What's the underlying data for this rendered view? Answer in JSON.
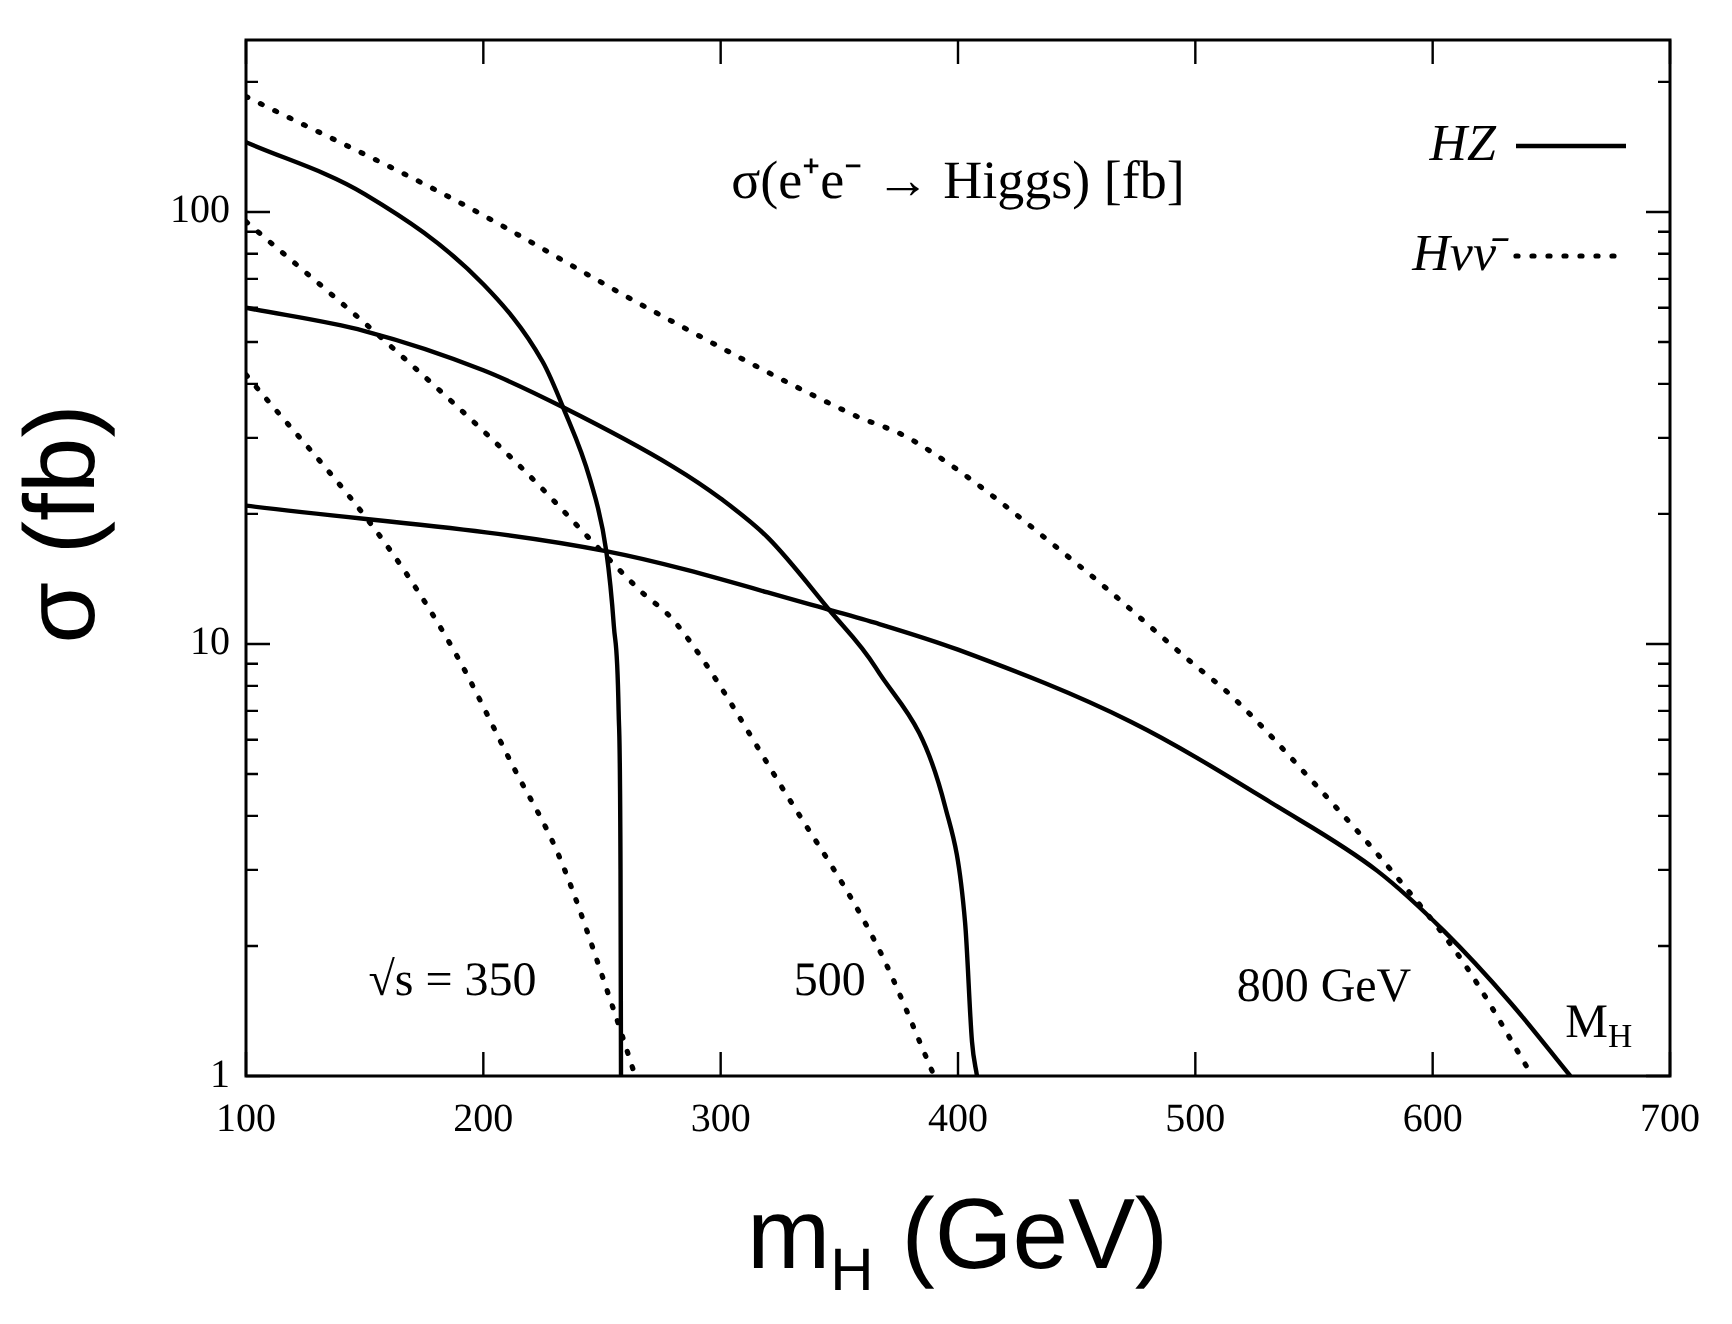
{
  "chart_data": {
    "type": "line",
    "title": "σ(e⁺e⁻ → Higgs) [fb]",
    "xlabel": "m$_{H}$ (GeV)",
    "ylabel": "σ (fb)",
    "log": "y",
    "xlim": [
      100,
      700
    ],
    "ylim": [
      1,
      250
    ],
    "xticks": [
      100,
      200,
      300,
      400,
      500,
      600,
      700
    ],
    "yticks": [
      1,
      {
        "value": 2,
        "label": null
      },
      {
        "value": 3,
        "label": null
      },
      {
        "value": 4,
        "label": null
      },
      {
        "value": 5,
        "label": null
      },
      {
        "value": 6,
        "label": null
      },
      {
        "value": 7,
        "label": null
      },
      {
        "value": 8,
        "label": null
      },
      {
        "value": 9,
        "label": null
      },
      10,
      {
        "value": 20,
        "label": null
      },
      {
        "value": 30,
        "label": null
      },
      {
        "value": 40,
        "label": null
      },
      {
        "value": 50,
        "label": null
      },
      {
        "value": 60,
        "label": null
      },
      {
        "value": 70,
        "label": null
      },
      {
        "value": 80,
        "label": null
      },
      {
        "value": 90,
        "label": null
      },
      100,
      {
        "value": 200,
        "label": null
      }
    ],
    "grid": false,
    "legend": "top right",
    "marker": "none",
    "series": [
      {
        "name": "HZ",
        "color": "#000000",
        "line_style": "solid",
        "x": [
          100,
          150,
          200,
          225,
          233.6,
          245,
          251.8,
          255,
          257,
          257.8,
          258
        ],
        "values": [
          145,
          110,
          68,
          45,
          35.3,
          24,
          16.4,
          11,
          7,
          3,
          1
        ]
      },
      {
        "color": "#000000",
        "line_style": "solid",
        "x": [
          100,
          150,
          200,
          233.6,
          280,
          300,
          320,
          345.7,
          365.4,
          394.6,
          403,
          405.9,
          408
        ],
        "values": [
          60,
          53,
          43,
          35.3,
          25.7,
          21.7,
          17.6,
          12,
          8.8,
          4.2,
          2.26,
          1.2,
          1
        ]
      },
      {
        "color": "#000000",
        "line_style": "solid",
        "x": [
          100,
          251.6,
          345.7,
          365,
          400,
          473,
          534.7,
          576.8,
          604.6,
          632.7,
          658
        ],
        "values": [
          20.9,
          16.4,
          12,
          11.2,
          9.7,
          6.6,
          4.2,
          2.98,
          2.17,
          1.48,
          1
        ]
      },
      {
        "name": "Hνν̄",
        "color": "#000000",
        "line_style": "dotted",
        "x": [
          100,
          159,
          187.4,
          212.6,
          232.2,
          254.6,
          264
        ],
        "values": [
          42,
          17,
          9.7,
          5.2,
          3.2,
          1.44,
          1
        ]
      },
      {
        "color": "#000000",
        "line_style": "dotted",
        "x": [
          100,
          159,
          215.4,
          266,
          281,
          327.5,
          366.6,
          390
        ],
        "values": [
          95,
          50,
          25.8,
          13.3,
          11.2,
          4.5,
          1.97,
          1
        ]
      },
      {
        "color": "#000000",
        "line_style": "dotted",
        "x": [
          100,
          187.4,
          271.4,
          355.5,
          380.5,
          450.3,
          498,
          515,
          551,
          584.6,
          613,
          642
        ],
        "values": [
          185,
          107,
          59,
          34,
          29.7,
          15.3,
          9.1,
          7.6,
          4.7,
          2.9,
          1.83,
          1
        ]
      }
    ],
    "annotations": [
      "√s = 350",
      "500",
      "800 GeV",
      "M$_{H}$"
    ]
  }
}
